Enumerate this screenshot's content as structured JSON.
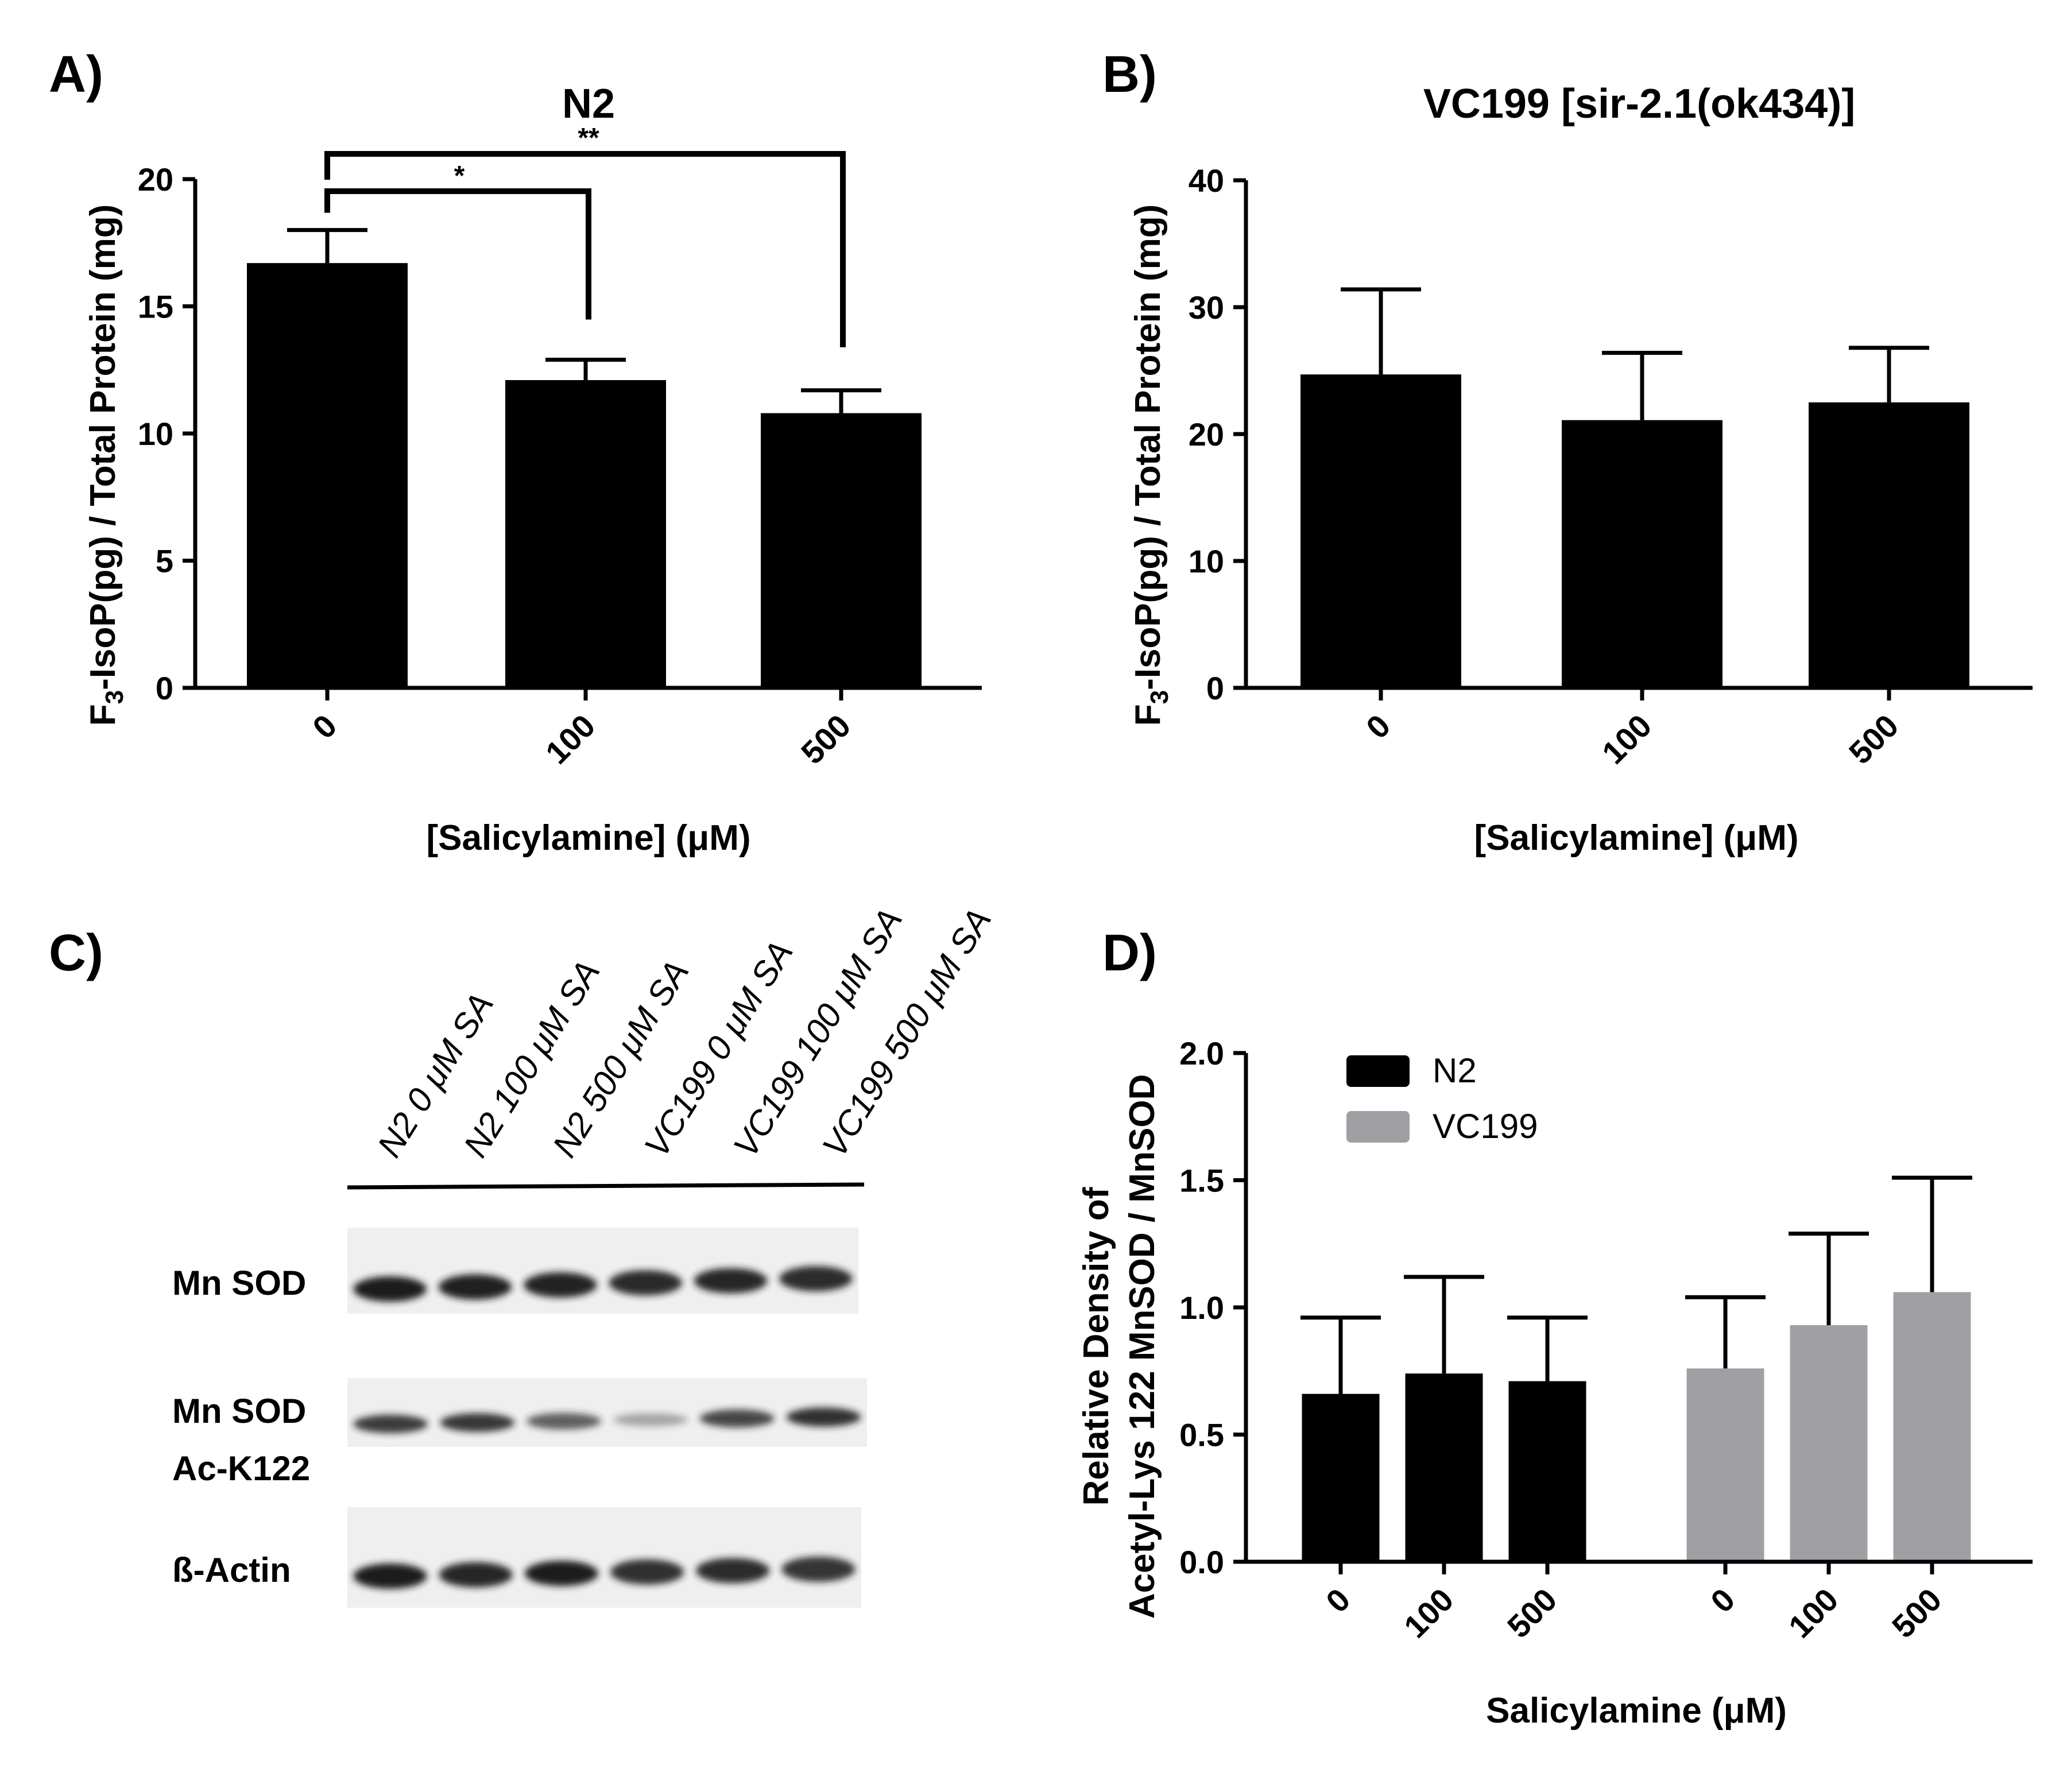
{
  "colors": {
    "n2": "#000000",
    "vc199": "#a0a0a4",
    "axis": "#000000",
    "blot_bg": "#efefef",
    "band": "#1c1c1c"
  },
  "panels": {
    "a": {
      "label": "A)"
    },
    "b": {
      "label": "B)"
    },
    "c": {
      "label": "C)"
    },
    "d": {
      "label": "D)"
    }
  },
  "chart_data": [
    {
      "id": "A",
      "type": "bar",
      "title": "N2",
      "ylabel_main": "F",
      "ylabel_sub": "3",
      "ylabel_rest": "-IsoP(pg) / Total Protein (mg)",
      "xlabel": "[Salicylamine] (μM)",
      "categories": [
        "0",
        "100",
        "500"
      ],
      "values": [
        16.7,
        12.1,
        10.8
      ],
      "errors": [
        1.3,
        0.8,
        0.9
      ],
      "ylim": [
        0,
        20
      ],
      "yticks": [
        "0",
        "5",
        "10",
        "15",
        "20"
      ],
      "significance": [
        {
          "label": "*",
          "from": "0",
          "to": "100"
        },
        {
          "label": "**",
          "from": "0",
          "to": "500"
        }
      ],
      "grid": false
    },
    {
      "id": "B",
      "type": "bar",
      "title": "VC199 [sir-2.1(ok434)]",
      "ylabel_main": "F",
      "ylabel_sub": "3",
      "ylabel_rest": "-IsoP(pg) / Total Protein (mg)",
      "xlabel": "[Salicylamine] (μM)",
      "categories": [
        "0",
        "100",
        "500"
      ],
      "values": [
        24.7,
        21.1,
        22.5
      ],
      "errors": [
        6.7,
        5.3,
        4.3
      ],
      "ylim": [
        0,
        40
      ],
      "yticks": [
        "0",
        "10",
        "20",
        "30",
        "40"
      ],
      "grid": false
    },
    {
      "id": "D",
      "type": "bar",
      "ylabel_line1": "Relative Density of",
      "ylabel_line2": "Acetyl-Lys 122 MnSOD / MnSOD",
      "xlabel": "Salicylamine (μM)",
      "categories": [
        "0",
        "100",
        "500"
      ],
      "series": [
        {
          "name": "N2",
          "values": [
            0.66,
            0.74,
            0.71
          ],
          "errors": [
            0.3,
            0.38,
            0.25
          ]
        },
        {
          "name": "VC199",
          "values": [
            0.76,
            0.93,
            1.06
          ],
          "errors": [
            0.28,
            0.36,
            0.45
          ]
        }
      ],
      "ylim": [
        0,
        2.0
      ],
      "yticks": [
        "0.0",
        "0.5",
        "1.0",
        "1.5",
        "2.0"
      ],
      "legend_position": "top-left",
      "grid": false
    }
  ],
  "blot": {
    "lanes": [
      "N2 0 μM SA",
      "N2 100 μM SA",
      "N2 500 μM SA",
      "VC199 0 μM SA",
      "VC199 100 μM SA",
      "VC199 500 μM SA"
    ],
    "rows": [
      {
        "label": "Mn SOD",
        "label2": ""
      },
      {
        "label": "Mn SOD",
        "label2": "Ac-K122"
      },
      {
        "label": "ß-Actin",
        "label2": ""
      }
    ],
    "band_intensity": [
      [
        1.0,
        0.98,
        0.97,
        0.93,
        0.95,
        0.92
      ],
      [
        0.85,
        0.87,
        0.68,
        0.35,
        0.8,
        0.9
      ],
      [
        1.0,
        0.95,
        1.0,
        0.9,
        0.92,
        0.88
      ]
    ]
  }
}
